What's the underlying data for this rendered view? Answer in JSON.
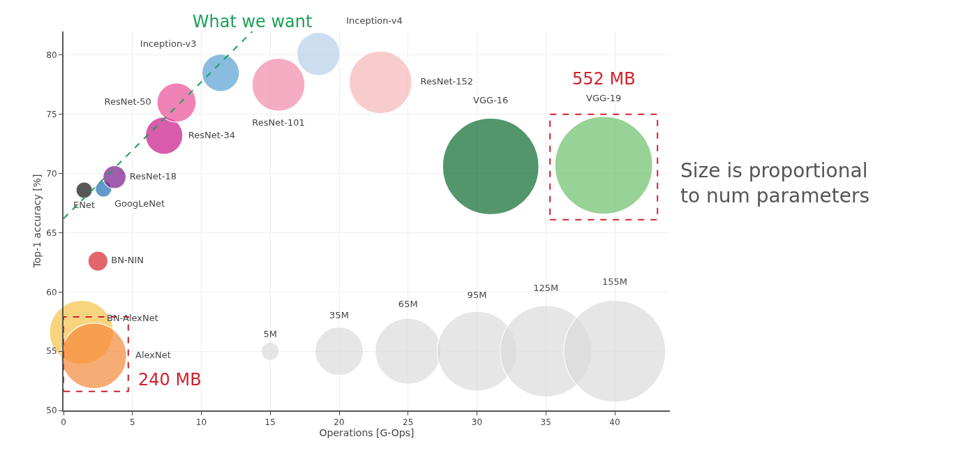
{
  "chart_data": {
    "type": "bubble",
    "xlabel": "Operations [G-Ops]",
    "ylabel": "Top-1 accuracy [%]",
    "xlim": [
      0,
      44
    ],
    "ylim": [
      50,
      82
    ],
    "xticks": [
      0,
      5,
      10,
      15,
      20,
      25,
      30,
      35,
      40
    ],
    "yticks": [
      50,
      55,
      60,
      65,
      70,
      75,
      80
    ],
    "grid": true,
    "legend": false,
    "marker": "circle",
    "size_legend": [
      {
        "value": 5,
        "label": "5M"
      },
      {
        "value": 35,
        "label": "35M"
      },
      {
        "value": 65,
        "label": "65M"
      },
      {
        "value": 95,
        "label": "95M"
      },
      {
        "value": 125,
        "label": "125M"
      },
      {
        "value": 155,
        "label": "155M"
      }
    ],
    "series": [
      {
        "name": "BN-AlexNet",
        "color": "#f7c24a",
        "x": [
          1.3
        ],
        "values": [
          56.6
        ],
        "sizes": [
          61
        ]
      },
      {
        "name": "AlexNet",
        "color": "#f58a3a",
        "x": [
          2.2
        ],
        "values": [
          54.6
        ],
        "sizes": [
          64
        ]
      },
      {
        "name": "BN-NIN",
        "color": "#d7262b",
        "x": [
          2.5
        ],
        "values": [
          62.6
        ],
        "sizes": [
          6
        ]
      },
      {
        "name": "ENet",
        "color": "#111111",
        "x": [
          1.5
        ],
        "values": [
          68.6
        ],
        "sizes": [
          4
        ]
      },
      {
        "name": "GoogLeNet",
        "color": "#1f6fb4",
        "x": [
          2.9
        ],
        "values": [
          68.7
        ],
        "sizes": [
          4
        ]
      },
      {
        "name": "ResNet-18",
        "color": "#7a1a8c",
        "x": [
          3.7
        ],
        "values": [
          69.7
        ],
        "sizes": [
          8
        ]
      },
      {
        "name": "ResNet-34",
        "color": "#c8178a",
        "x": [
          7.3
        ],
        "values": [
          73.2
        ],
        "sizes": [
          21
        ]
      },
      {
        "name": "ResNet-50",
        "color": "#ea4f97",
        "x": [
          8.2
        ],
        "values": [
          76.0
        ],
        "sizes": [
          23
        ]
      },
      {
        "name": "Inception-v3",
        "color": "#5aa0d3",
        "x": [
          11.4
        ],
        "values": [
          78.5
        ],
        "sizes": [
          21
        ]
      },
      {
        "name": "ResNet-101",
        "color": "#f28bac",
        "x": [
          15.6
        ],
        "values": [
          77.5
        ],
        "sizes": [
          42
        ]
      },
      {
        "name": "Inception-v4",
        "color": "#b9d0ea",
        "x": [
          18.5
        ],
        "values": [
          80.1
        ],
        "sizes": [
          28
        ]
      },
      {
        "name": "ResNet-152",
        "color": "#f6b7b8",
        "x": [
          23.0
        ],
        "values": [
          77.7
        ],
        "sizes": [
          59
        ]
      },
      {
        "name": "VGG-16",
        "color": "#0b6a2e",
        "x": [
          31.0
        ],
        "values": [
          70.6
        ],
        "sizes": [
          139
        ]
      },
      {
        "name": "VGG-19",
        "color": "#6cbf6a",
        "x": [
          39.2
        ],
        "values": [
          70.7
        ],
        "sizes": [
          143
        ]
      },
      {
        "name": "What we want",
        "type": "line",
        "line_style": "dashed",
        "marker": "none",
        "color": "#1aa05a",
        "x": [
          0,
          13.7
        ],
        "values": [
          66.2,
          82.0
        ]
      }
    ],
    "annotations": [
      "240 MB",
      "552 MB",
      "Size is proportional to num parameters"
    ]
  }
}
